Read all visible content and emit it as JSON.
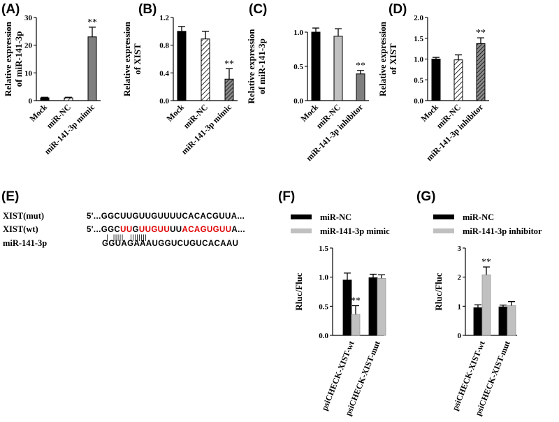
{
  "colors": {
    "black": "#000000",
    "grey": "#7f7f7f",
    "lightgrey": "#c0c0c0",
    "seed_red": "#e00000"
  },
  "chart_data": [
    {
      "id": "A",
      "label": "(A)",
      "type": "bar",
      "ylabel": [
        "Relative expression",
        "of miR-141-3p"
      ],
      "ylim": [
        0,
        30
      ],
      "yticks": [
        0,
        10,
        20,
        30
      ],
      "categories": [
        "Mock",
        "miR-NC",
        "miR-141-3p mimic"
      ],
      "values": [
        1.0,
        1.0,
        23.0
      ],
      "errors": [
        0.2,
        0.2,
        3.5
      ],
      "fills": [
        "black",
        "hatch",
        "grey"
      ],
      "significance": [
        "",
        "",
        "**"
      ]
    },
    {
      "id": "B",
      "label": "(B)",
      "type": "bar",
      "ylabel": [
        "Relative expression",
        "of XIST"
      ],
      "ylim": [
        0,
        1.2
      ],
      "yticks": [
        "0.0",
        "0.4",
        "0.8",
        "1.2"
      ],
      "categories": [
        "Mock",
        "miR-NC",
        "miR-141-3p mimic"
      ],
      "values": [
        1.0,
        0.89,
        0.31
      ],
      "errors": [
        0.07,
        0.11,
        0.15
      ],
      "fills": [
        "black",
        "hatch",
        "darkhatch"
      ],
      "significance": [
        "",
        "",
        "**"
      ]
    },
    {
      "id": "C",
      "label": "(C)",
      "type": "bar",
      "ylabel": [
        "Relative expression",
        "of miR-141-3p"
      ],
      "ylim": [
        0,
        1.0
      ],
      "yticks": [
        "0.0",
        "0.5",
        "1.0"
      ],
      "categories": [
        "Mock",
        "miR-NC",
        "miR-141-3p inhibitor"
      ],
      "values": [
        1.0,
        0.94,
        0.39
      ],
      "errors": [
        0.06,
        0.11,
        0.05
      ],
      "fills": [
        "black",
        "lightgrey",
        "grey"
      ],
      "significance": [
        "",
        "",
        "**"
      ]
    },
    {
      "id": "D",
      "label": "(D)",
      "type": "bar",
      "ylabel": [
        "Relative expression",
        "of XIST"
      ],
      "ylim": [
        0,
        2.0
      ],
      "yticks": [
        "0.0",
        "0.5",
        "1.0",
        "1.5",
        "2.0"
      ],
      "categories": [
        "Mock",
        "miR-NC",
        "miR-141-3p inhibitor"
      ],
      "values": [
        1.0,
        0.98,
        1.37
      ],
      "errors": [
        0.04,
        0.12,
        0.14
      ],
      "fills": [
        "black",
        "hatch",
        "darkhatch"
      ],
      "significance": [
        "",
        "",
        "**"
      ]
    },
    {
      "id": "F",
      "label": "(F)",
      "type": "bar",
      "ylabel": [
        "Rluc/Fluc"
      ],
      "ylim": [
        0,
        1.5
      ],
      "yticks": [
        "0.0",
        "0.5",
        "1.0",
        "1.5"
      ],
      "categories": [
        "psiCHECK-XIST-wt",
        "psiCHECK-XIST-mut"
      ],
      "series": [
        {
          "name": "miR-NC",
          "values": [
            0.95,
            0.99
          ],
          "errors": [
            0.12,
            0.06
          ]
        },
        {
          "name": "miR-141-3p mimic",
          "values": [
            0.36,
            0.98
          ],
          "errors": [
            0.15,
            0.06
          ]
        }
      ],
      "significance": [
        [
          "",
          "**"
        ],
        [
          "",
          ""
        ]
      ]
    },
    {
      "id": "G",
      "label": "(G)",
      "type": "bar",
      "ylabel": [
        "Rluc/Fluc"
      ],
      "ylim": [
        0,
        3
      ],
      "yticks": [
        "0",
        "1",
        "2",
        "3"
      ],
      "categories": [
        "psiCHECK-XIST-wt",
        "psiCHECK-XIST-mut"
      ],
      "series": [
        {
          "name": "miR-NC",
          "values": [
            0.95,
            0.98
          ],
          "errors": [
            0.1,
            0.06
          ]
        },
        {
          "name": "miR-141-3p inhibitor",
          "values": [
            2.08,
            1.02
          ],
          "errors": [
            0.27,
            0.14
          ]
        }
      ],
      "significance": [
        [
          "",
          "**"
        ],
        [
          "",
          ""
        ]
      ]
    }
  ],
  "sequence_panel": {
    "label": "(E)",
    "rows": [
      {
        "name": "XIST(mut)",
        "prefix": "5'...",
        "segments": [
          {
            "t": "GGCUUGUUGUUUUCACACGUUA",
            "red": false
          },
          {
            "t": "...",
            "red": false
          }
        ]
      },
      {
        "name": "XIST(wt)",
        "prefix": "5'...",
        "segments": [
          {
            "t": "GGC",
            "red": false
          },
          {
            "t": "UU",
            "red": true
          },
          {
            "t": "G",
            "red": false
          },
          {
            "t": "UUGUU",
            "red": true
          },
          {
            "t": "UU",
            "red": false
          },
          {
            "t": "ACAGUGUU",
            "red": true
          },
          {
            "t": "A...",
            "red": false
          }
        ]
      },
      {
        "name": "miR-141-3p",
        "prefix": "",
        "segments": [
          {
            "t": "GGUAGAAAUGGUCUGUCACAAU",
            "red": false
          }
        ]
      }
    ],
    "pairing_marks": "  |  |||||   ||||||||"
  }
}
